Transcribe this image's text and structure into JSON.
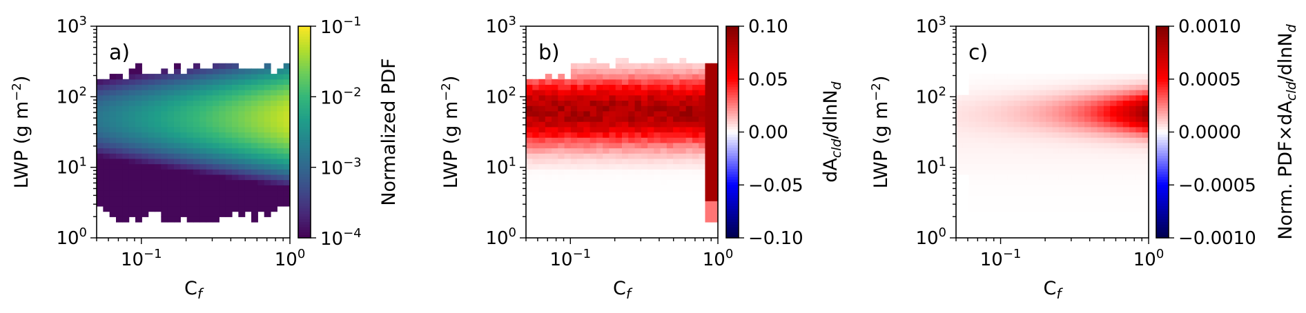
{
  "chart_data": [
    {
      "type": "heatmap",
      "panel_label": "a)",
      "xlabel": "C",
      "xlabel_sub": "f",
      "ylabel": "LWP (g m",
      "ylabel_sup": "−2",
      "ylabel_end": ")",
      "xscale": "log",
      "yscale": "log",
      "xlim": [
        0.05,
        1.0
      ],
      "ylim": [
        1,
        1000
      ],
      "xticks": [
        {
          "mant": "10",
          "exp": "−1",
          "value": 0.1
        },
        {
          "mant": "10",
          "exp": "0",
          "value": 1
        }
      ],
      "yticks": [
        {
          "mant": "10",
          "exp": "0",
          "value": 1
        },
        {
          "mant": "10",
          "exp": "1",
          "value": 10
        },
        {
          "mant": "10",
          "exp": "2",
          "value": 100
        },
        {
          "mant": "10",
          "exp": "3",
          "value": 1000
        }
      ],
      "colormap": "viridis",
      "colorbar": {
        "label": "Normalized PDF",
        "scale": "log",
        "range": [
          0.0001,
          0.1
        ],
        "ticks": [
          {
            "mant": "10",
            "exp": "−1",
            "value": 0.1
          },
          {
            "mant": "10",
            "exp": "−2",
            "value": 0.01
          },
          {
            "mant": "10",
            "exp": "−3",
            "value": 0.001
          },
          {
            "mant": "10",
            "exp": "−4",
            "value": 0.0001
          }
        ]
      },
      "field": {
        "description_of_values": "normalized PDF, log10 peaks near LWP ~ 50 g m-2 rising toward Cf = 1",
        "peak_lwp": 50,
        "peak_value_at_cf1": 0.06,
        "value_at_cf005": 0.0015,
        "coverage_lwp_range": [
          1.5,
          300
        ]
      }
    },
    {
      "type": "heatmap",
      "panel_label": "b)",
      "xlabel": "C",
      "xlabel_sub": "f",
      "ylabel": "LWP (g m",
      "ylabel_sup": "−2",
      "ylabel_end": ")",
      "xscale": "log",
      "yscale": "log",
      "xlim": [
        0.05,
        1.0
      ],
      "ylim": [
        1,
        1000
      ],
      "xticks": [
        {
          "mant": "10",
          "exp": "−1",
          "value": 0.1
        },
        {
          "mant": "10",
          "exp": "0",
          "value": 1
        }
      ],
      "yticks": [
        {
          "mant": "10",
          "exp": "0",
          "value": 1
        },
        {
          "mant": "10",
          "exp": "1",
          "value": 10
        },
        {
          "mant": "10",
          "exp": "2",
          "value": 100
        },
        {
          "mant": "10",
          "exp": "3",
          "value": 1000
        }
      ],
      "colormap": "seismic",
      "colorbar": {
        "label_parts": [
          "dA",
          "cld",
          "/dlnN",
          "d"
        ],
        "scale": "linear",
        "range": [
          -0.1,
          0.1
        ],
        "ticks": [
          "0.10",
          "0.05",
          "0.00",
          "−0.05",
          "−0.10"
        ]
      },
      "field": {
        "description_of_values": "sensitivity dAcld/dlnNd, largest (~0.09) near LWP ~ 60 g m-2, decreasing toward small LWP",
        "max_value": 0.09,
        "coverage_lwp_range": [
          1.5,
          350
        ]
      }
    },
    {
      "type": "heatmap",
      "panel_label": "c)",
      "xlabel": "C",
      "xlabel_sub": "f",
      "ylabel": "LWP (g m",
      "ylabel_sup": "−2",
      "ylabel_end": ")",
      "xscale": "log",
      "yscale": "log",
      "xlim": [
        0.05,
        1.0
      ],
      "ylim": [
        1,
        1000
      ],
      "xticks": [
        {
          "mant": "10",
          "exp": "−1",
          "value": 0.1
        },
        {
          "mant": "10",
          "exp": "0",
          "value": 1
        }
      ],
      "yticks": [
        {
          "mant": "10",
          "exp": "0",
          "value": 1
        },
        {
          "mant": "10",
          "exp": "1",
          "value": 10
        },
        {
          "mant": "10",
          "exp": "2",
          "value": 100
        },
        {
          "mant": "10",
          "exp": "3",
          "value": 1000
        }
      ],
      "colormap": "seismic",
      "colorbar": {
        "label_parts": [
          "Norm. PDF×dA",
          "cld",
          "/dlnN",
          "d"
        ],
        "scale": "linear",
        "range": [
          -0.001,
          0.001
        ],
        "ticks": [
          "0.0010",
          "0.0005",
          "0.0000",
          "−0.0005",
          "−0.0010"
        ]
      },
      "field": {
        "description_of_values": "product of PDF and sensitivity, max (~0.0009) near Cf ~ 0.9 and LWP ~ 60 g m-2",
        "max_value": 0.0009,
        "coverage_lwp_range": [
          1.5,
          350
        ]
      }
    }
  ]
}
